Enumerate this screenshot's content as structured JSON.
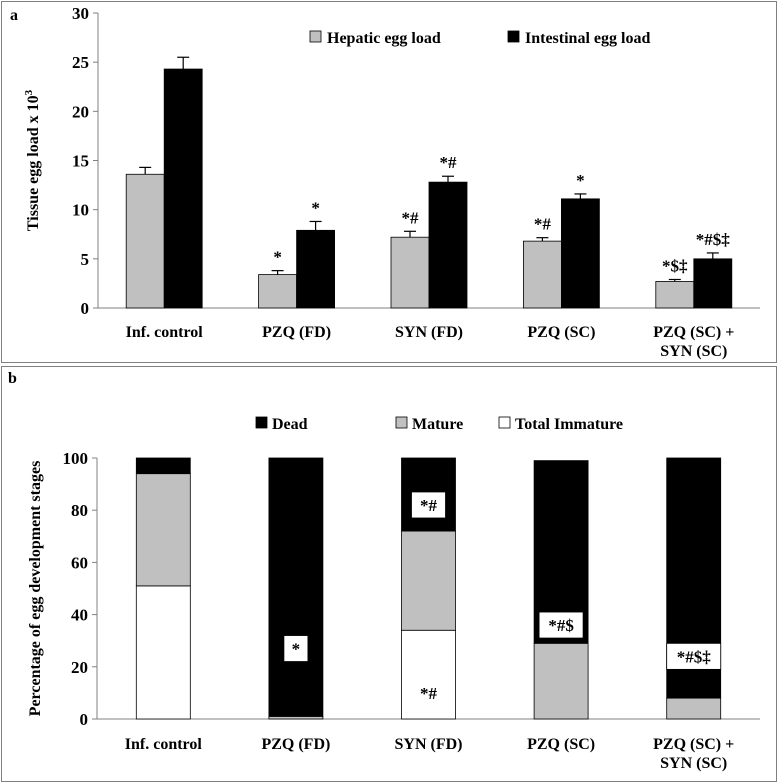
{
  "chart_data": [
    {
      "panel_label": "a",
      "type": "bar",
      "ylabel": "Tissue egg load x 10",
      "ylabel_exponent": "3",
      "ylim": [
        0,
        30
      ],
      "yticks": [
        "0",
        "5",
        "10",
        "15",
        "20",
        "25",
        "30"
      ],
      "categories": [
        [
          "Inf. control"
        ],
        [
          "PZQ (FD)"
        ],
        [
          "SYN (FD)"
        ],
        [
          "PZQ (SC)"
        ],
        [
          "PZQ (SC) +",
          "SYN (SC)"
        ]
      ],
      "legend_position": "top-right",
      "series": [
        {
          "name": "Hepatic egg load",
          "color": "#c0c0c0",
          "values": [
            13.6,
            3.4,
            7.2,
            6.8,
            2.7
          ],
          "errors": [
            0.7,
            0.4,
            0.6,
            0.35,
            0.2
          ],
          "annotations": [
            "",
            "*",
            "*#",
            "*#",
            "*$‡"
          ]
        },
        {
          "name": "Intestinal egg load",
          "color": "#000000",
          "values": [
            24.3,
            7.9,
            12.8,
            11.1,
            5.0
          ],
          "errors": [
            1.2,
            0.9,
            0.6,
            0.5,
            0.6
          ],
          "annotations": [
            "",
            "*",
            "*#",
            "*",
            "*#$‡"
          ]
        }
      ]
    },
    {
      "panel_label": "b",
      "type": "stacked_bar",
      "ylabel": "Percentage of egg development stages",
      "ylim": [
        0,
        100
      ],
      "yticks": [
        "0",
        "20",
        "40",
        "60",
        "80",
        "100"
      ],
      "categories": [
        [
          "Inf. control"
        ],
        [
          "PZQ (FD)"
        ],
        [
          "SYN (FD)"
        ],
        [
          "PZQ (SC)"
        ],
        [
          "PZQ (SC) +",
          "SYN (SC)"
        ]
      ],
      "legend_position": "top",
      "legend_order": [
        "Dead",
        "Mature",
        "Total Immature"
      ],
      "stack_order": [
        "Total Immature",
        "Mature",
        "Dead"
      ],
      "series": [
        {
          "name": "Total Immature",
          "color": "#ffffff",
          "values": [
            51,
            0,
            34,
            0,
            0
          ]
        },
        {
          "name": "Mature",
          "color": "#c0c0c0",
          "values": [
            43,
            1,
            38,
            29,
            8
          ]
        },
        {
          "name": "Dead",
          "color": "#000000",
          "values": [
            6,
            99,
            28,
            70,
            92
          ]
        }
      ],
      "annotations": [
        {
          "category": 1,
          "text": "*",
          "value": 27,
          "boxed": true
        },
        {
          "category": 2,
          "text": "*#",
          "value": 82,
          "boxed": true
        },
        {
          "category": 2,
          "text": "*#",
          "value": 10,
          "boxed": false
        },
        {
          "category": 3,
          "text": "*#$",
          "value": 36,
          "boxed": true
        },
        {
          "category": 4,
          "text": "*#$‡",
          "value": 24,
          "boxed": true
        }
      ]
    }
  ]
}
